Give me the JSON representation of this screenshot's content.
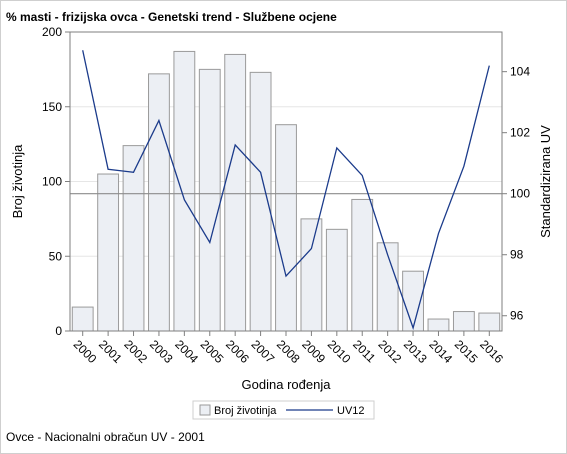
{
  "title": "% masti - frizijska ovca - Genetski trend - Službene ocjene",
  "footnote": "Ovce - Nacionalni obračun UV - 2001",
  "colors": {
    "bar_fill": "#eceff4",
    "bar_stroke": "#9a9a9a",
    "line": "#1b3b8b",
    "reference_line": "#8c8c8c",
    "grid": "#e6e6e6",
    "axis": "#7f7f7f"
  },
  "chart_data": {
    "type": "bar",
    "xlabel": "Godina rođenja",
    "ylabel": "Broj životinja",
    "y2label": "Standardizirana UV",
    "categories": [
      "2000",
      "2001",
      "2002",
      "2003",
      "2004",
      "2005",
      "2006",
      "2007",
      "2008",
      "2009",
      "2010",
      "2011",
      "2012",
      "2013",
      "2014",
      "2015",
      "2016"
    ],
    "ylim": [
      0,
      200
    ],
    "yticks": [
      "0",
      "50",
      "100",
      "150",
      "200"
    ],
    "y2lim": [
      95.5,
      105.3
    ],
    "y2ticks": [
      "96",
      "98",
      "100",
      "102",
      "104"
    ],
    "grid": true,
    "reference_line_y2": 100,
    "series": [
      {
        "name": "Broj životinja",
        "kind": "bar",
        "axis": "left",
        "values": [
          16,
          105,
          124,
          172,
          187,
          175,
          185,
          173,
          138,
          75,
          68,
          88,
          59,
          40,
          8,
          13,
          12
        ]
      },
      {
        "name": "UV12",
        "kind": "line",
        "axis": "right",
        "values": [
          104.7,
          100.8,
          100.7,
          102.4,
          99.8,
          98.4,
          101.6,
          100.7,
          97.3,
          98.2,
          101.5,
          100.6,
          98.0,
          95.6,
          98.7,
          100.9,
          104.2
        ]
      }
    ],
    "legend": "bottom-center"
  }
}
